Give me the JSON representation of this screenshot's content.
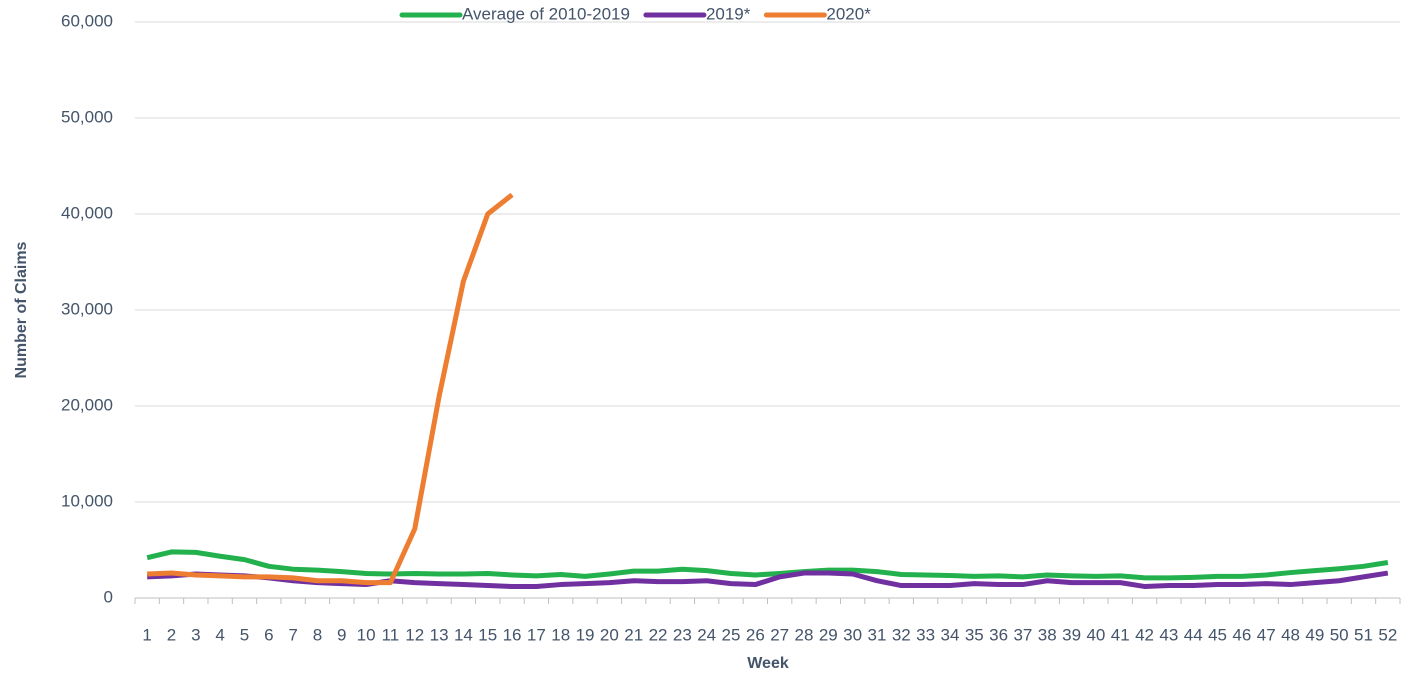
{
  "chart_data": {
    "type": "line",
    "y_label": "Number of Claims",
    "x_label": "Week",
    "categories": [
      1,
      2,
      3,
      4,
      5,
      6,
      7,
      8,
      9,
      10,
      11,
      12,
      13,
      14,
      15,
      16,
      17,
      18,
      19,
      20,
      21,
      22,
      23,
      24,
      25,
      26,
      27,
      28,
      29,
      30,
      31,
      32,
      33,
      34,
      35,
      36,
      37,
      38,
      39,
      40,
      41,
      42,
      43,
      44,
      45,
      46,
      47,
      48,
      49,
      50,
      51,
      52
    ],
    "series": [
      {
        "name": "Average of 2010-2019",
        "color": "#22b14c",
        "values": [
          4200,
          4800,
          4750,
          4350,
          4000,
          3300,
          3000,
          2900,
          2750,
          2550,
          2500,
          2550,
          2500,
          2500,
          2550,
          2400,
          2300,
          2450,
          2250,
          2500,
          2800,
          2800,
          3000,
          2850,
          2550,
          2400,
          2550,
          2750,
          2900,
          2900,
          2750,
          2450,
          2400,
          2350,
          2250,
          2300,
          2200,
          2400,
          2300,
          2250,
          2300,
          2100,
          2100,
          2150,
          2250,
          2250,
          2400,
          2650,
          2850,
          3050,
          3300,
          3700
        ]
      },
      {
        "name": "2019*",
        "color": "#7030a0",
        "values": [
          2200,
          2300,
          2500,
          2400,
          2300,
          2100,
          1800,
          1600,
          1500,
          1400,
          1800,
          1600,
          1500,
          1400,
          1300,
          1200,
          1200,
          1400,
          1500,
          1600,
          1800,
          1700,
          1700,
          1800,
          1500,
          1400,
          2200,
          2600,
          2600,
          2500,
          1800,
          1300,
          1300,
          1300,
          1500,
          1400,
          1400,
          1800,
          1600,
          1600,
          1600,
          1200,
          1300,
          1300,
          1400,
          1400,
          1500,
          1400,
          1600,
          1800,
          2200,
          2600
        ]
      },
      {
        "name": "2020*",
        "color": "#ed7d31",
        "values": [
          2500,
          2600,
          2400,
          2300,
          2200,
          2200,
          2100,
          1800,
          1800,
          1600,
          1600,
          7200,
          21000,
          33000,
          40000,
          42000,
          null,
          null,
          null,
          null,
          null,
          null,
          null,
          null,
          null,
          null,
          null,
          null,
          null,
          null,
          null,
          null,
          null,
          null,
          null,
          null,
          null,
          null,
          null,
          null,
          null,
          null,
          null,
          null,
          null,
          null,
          null,
          null,
          null,
          null,
          null,
          null
        ]
      }
    ],
    "ylim": [
      0,
      60000
    ],
    "yticks": [
      0,
      {
        "value": 10000,
        "label": "10,000"
      },
      {
        "value": 20000,
        "label": "20,000"
      },
      {
        "value": 30000,
        "label": "30,000"
      },
      {
        "value": 40000,
        "label": "40,000"
      },
      {
        "value": 50000,
        "label": "50,000"
      },
      {
        "value": 60000,
        "label": "60,000"
      }
    ],
    "grid": true,
    "legend": "top"
  }
}
